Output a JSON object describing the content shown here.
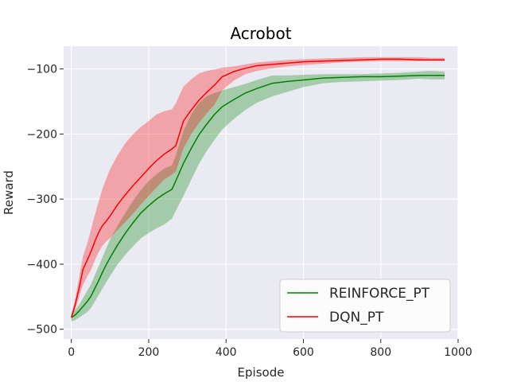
{
  "chart_data": {
    "type": "line",
    "title": "Acrobot",
    "xlabel": "Episode",
    "ylabel": "Reward",
    "xlim": [
      -20,
      1000
    ],
    "ylim": [
      -515,
      -65
    ],
    "xticks": [
      0,
      200,
      400,
      600,
      800,
      1000
    ],
    "yticks": [
      -500,
      -400,
      -300,
      -200,
      -100
    ],
    "grid": true,
    "legend_position": "lower-right",
    "background": "#EAEAF2",
    "series": [
      {
        "name": "REINFORCE_PT",
        "color": "#008000",
        "x": [
          0,
          10,
          20,
          30,
          40,
          50,
          60,
          70,
          80,
          90,
          100,
          120,
          140,
          160,
          180,
          200,
          220,
          240,
          260,
          270,
          290,
          310,
          330,
          350,
          370,
          390,
          420,
          450,
          480,
          520,
          560,
          600,
          650,
          700,
          750,
          800,
          850,
          900,
          930,
          965
        ],
        "y": [
          -482,
          -478,
          -472,
          -465,
          -458,
          -450,
          -438,
          -426,
          -413,
          -401,
          -390,
          -370,
          -352,
          -336,
          -321,
          -310,
          -300,
          -292,
          -285,
          -272,
          -245,
          -222,
          -201,
          -185,
          -170,
          -158,
          -147,
          -137,
          -130,
          -122,
          -119,
          -117,
          -114,
          -113,
          -112,
          -112,
          -111,
          -110,
          -110,
          -110
        ],
        "lower": [
          -488,
          -486,
          -482,
          -478,
          -474,
          -468,
          -458,
          -448,
          -438,
          -428,
          -418,
          -400,
          -385,
          -372,
          -360,
          -352,
          -345,
          -339,
          -330,
          -318,
          -295,
          -270,
          -246,
          -226,
          -209,
          -193,
          -177,
          -163,
          -152,
          -142,
          -135,
          -128,
          -122,
          -120,
          -119,
          -118,
          -117,
          -115,
          -116,
          -116
        ],
        "upper": [
          -476,
          -470,
          -462,
          -452,
          -442,
          -432,
          -418,
          -404,
          -390,
          -376,
          -362,
          -340,
          -321,
          -302,
          -286,
          -272,
          -262,
          -253,
          -248,
          -233,
          -195,
          -170,
          -152,
          -142,
          -137,
          -133,
          -128,
          -123,
          -117,
          -110,
          -110,
          -109,
          -108,
          -108,
          -108,
          -107,
          -106,
          -104,
          -103,
          -104
        ]
      },
      {
        "name": "DQN_PT",
        "color": "#FF0000",
        "x": [
          0,
          10,
          20,
          30,
          40,
          50,
          60,
          70,
          80,
          90,
          100,
          120,
          140,
          160,
          180,
          200,
          220,
          240,
          260,
          270,
          290,
          310,
          330,
          350,
          370,
          390,
          420,
          450,
          480,
          520,
          560,
          600,
          650,
          700,
          750,
          800,
          850,
          900,
          930,
          965
        ],
        "y": [
          -482,
          -462,
          -437,
          -408,
          -395,
          -382,
          -366,
          -352,
          -341,
          -334,
          -326,
          -308,
          -293,
          -279,
          -266,
          -253,
          -241,
          -231,
          -223,
          -218,
          -180,
          -163,
          -148,
          -136,
          -125,
          -112,
          -104,
          -99,
          -95,
          -93,
          -91,
          -89,
          -88,
          -87,
          -86,
          -85,
          -85,
          -86,
          -86,
          -86
        ],
        "lower": [
          -485,
          -470,
          -450,
          -432,
          -420,
          -410,
          -395,
          -382,
          -372,
          -365,
          -360,
          -347,
          -335,
          -322,
          -308,
          -295,
          -282,
          -270,
          -262,
          -258,
          -222,
          -200,
          -183,
          -168,
          -155,
          -133,
          -118,
          -108,
          -103,
          -99,
          -96,
          -94,
          -92,
          -90,
          -89,
          -88,
          -88,
          -88,
          -88,
          -88
        ],
        "upper": [
          -479,
          -452,
          -420,
          -388,
          -370,
          -349,
          -326,
          -305,
          -285,
          -269,
          -254,
          -232,
          -214,
          -200,
          -189,
          -180,
          -170,
          -165,
          -162,
          -153,
          -127,
          -116,
          -107,
          -103,
          -101,
          -98,
          -96,
          -93,
          -90,
          -88,
          -86,
          -85,
          -84,
          -83,
          -82,
          -82,
          -82,
          -82,
          -83,
          -83
        ]
      }
    ]
  }
}
